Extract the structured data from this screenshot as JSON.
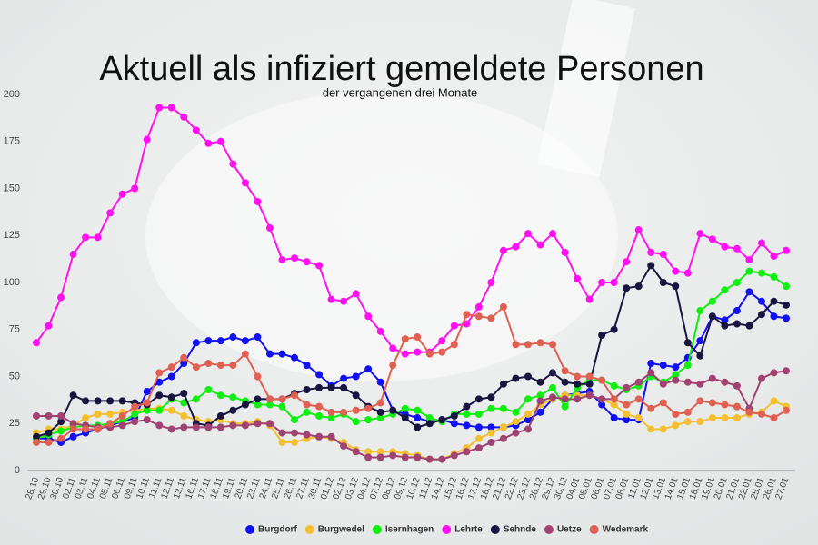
{
  "chart_data": {
    "type": "line",
    "title": "Aktuell als infiziert gemeldete Personen",
    "subtitle": "der vergangenen drei Monate",
    "categories": [
      "28.10",
      "29.10",
      "30.10",
      "02.11",
      "03.11",
      "04.11",
      "05.11",
      "06.11",
      "09.11",
      "10.11",
      "11.11",
      "12.11",
      "13.11",
      "16.11",
      "17.11",
      "18.11",
      "19.11",
      "20.11",
      "23.11",
      "24.11",
      "25.11",
      "26.11",
      "27.11",
      "30.11",
      "01.12",
      "02.12",
      "03.12",
      "04.12",
      "07.12",
      "08.12",
      "09.12",
      "10.12",
      "11.12",
      "14.12",
      "15.12",
      "16.12",
      "17.12",
      "18.12",
      "21.12",
      "22.12",
      "23.12",
      "28.12",
      "29.12",
      "30.12",
      "04.01",
      "05.01",
      "06.01",
      "07.01",
      "08.01",
      "11.01",
      "12.01",
      "13.01",
      "14.01",
      "15.01",
      "18.01",
      "19.01",
      "20.01",
      "21.01",
      "22.01",
      "25.01",
      "26.01",
      "27.01"
    ],
    "ylim": [
      0,
      200
    ],
    "yticks": [
      0,
      25,
      50,
      75,
      100,
      125,
      150,
      175,
      200
    ],
    "grid": false,
    "series": [
      {
        "name": "Burgdorf",
        "color": "#1010f0",
        "values": [
          17,
          17,
          15,
          18,
          20,
          22,
          24,
          26,
          28,
          42,
          47,
          50,
          57,
          68,
          69,
          69,
          71,
          69,
          71,
          62,
          62,
          60,
          56,
          51,
          45,
          49,
          50,
          54,
          47,
          32,
          30,
          28,
          26,
          27,
          25,
          24,
          23,
          23,
          23,
          24,
          27,
          31,
          38,
          40,
          41,
          42,
          35,
          28,
          27,
          27,
          57,
          56,
          55,
          60,
          69,
          82,
          80,
          85,
          95,
          90,
          82,
          81
        ]
      },
      {
        "name": "Burgwedel",
        "color": "#f4c030",
        "values": [
          20,
          22,
          22,
          24,
          28,
          30,
          30,
          31,
          32,
          33,
          33,
          32,
          29,
          27,
          26,
          27,
          25,
          25,
          26,
          24,
          15,
          15,
          17,
          18,
          17,
          15,
          11,
          10,
          10,
          10,
          9,
          8,
          6,
          6,
          9,
          12,
          17,
          20,
          23,
          26,
          30,
          35,
          38,
          40,
          40,
          40,
          38,
          35,
          30,
          28,
          22,
          22,
          24,
          26,
          26,
          28,
          28,
          28,
          30,
          31,
          37,
          34
        ]
      },
      {
        "name": "Isernhagen",
        "color": "#10f010",
        "values": [
          17,
          19,
          21,
          23,
          24,
          24,
          25,
          26,
          30,
          32,
          32,
          38,
          36,
          38,
          43,
          40,
          39,
          37,
          35,
          35,
          34,
          27,
          31,
          29,
          28,
          30,
          26,
          27,
          28,
          30,
          33,
          32,
          28,
          26,
          30,
          30,
          30,
          33,
          33,
          31,
          38,
          40,
          44,
          34,
          44,
          48,
          48,
          45,
          43,
          45,
          50,
          47,
          51,
          56,
          85,
          90,
          96,
          100,
          106,
          105,
          103,
          98
        ]
      },
      {
        "name": "Lehrte",
        "color": "#ff10f0",
        "values": [
          68,
          77,
          92,
          115,
          124,
          124,
          137,
          147,
          150,
          176,
          193,
          193,
          188,
          181,
          174,
          175,
          163,
          153,
          143,
          129,
          112,
          113,
          111,
          109,
          91,
          90,
          94,
          82,
          74,
          65,
          62,
          63,
          63,
          69,
          77,
          78,
          87,
          100,
          117,
          119,
          126,
          120,
          126,
          116,
          102,
          91,
          100,
          100,
          111,
          128,
          116,
          115,
          106,
          105,
          126,
          123,
          119,
          118,
          112,
          121,
          114,
          117
        ]
      },
      {
        "name": "Sehnde",
        "color": "#1a1440",
        "values": [
          18,
          20,
          26,
          40,
          37,
          37,
          37,
          37,
          36,
          35,
          40,
          39,
          41,
          25,
          24,
          29,
          32,
          35,
          38,
          38,
          38,
          41,
          43,
          44,
          44,
          44,
          40,
          34,
          31,
          32,
          28,
          23,
          25,
          27,
          29,
          34,
          38,
          39,
          46,
          49,
          50,
          47,
          52,
          47,
          46,
          46,
          72,
          75,
          97,
          98,
          109,
          100,
          98,
          68,
          61,
          82,
          77,
          78,
          77,
          83,
          90,
          88
        ]
      },
      {
        "name": "Uetze",
        "color": "#a04272",
        "values": [
          29,
          29,
          29,
          25,
          24,
          23,
          23,
          24,
          26,
          27,
          24,
          22,
          23,
          23,
          23,
          23,
          24,
          24,
          25,
          25,
          20,
          20,
          19,
          18,
          18,
          13,
          10,
          7,
          7,
          8,
          7,
          7,
          6,
          6,
          8,
          10,
          12,
          15,
          17,
          20,
          22,
          37,
          39,
          38,
          38,
          40,
          38,
          38,
          44,
          47,
          52,
          46,
          48,
          47,
          46,
          49,
          47,
          45,
          33,
          49,
          52,
          53
        ]
      },
      {
        "name": "Wedemark",
        "color": "#e06052",
        "values": [
          15,
          15,
          17,
          22,
          22,
          22,
          25,
          29,
          34,
          36,
          52,
          55,
          60,
          55,
          57,
          56,
          56,
          62,
          50,
          38,
          38,
          40,
          35,
          34,
          31,
          31,
          32,
          33,
          36,
          56,
          70,
          71,
          62,
          63,
          67,
          83,
          82,
          81,
          87,
          67,
          67,
          68,
          67,
          53,
          50,
          50,
          48,
          38,
          35,
          38,
          33,
          36,
          30,
          31,
          37,
          36,
          35,
          34,
          31,
          30,
          28,
          32
        ]
      }
    ]
  }
}
